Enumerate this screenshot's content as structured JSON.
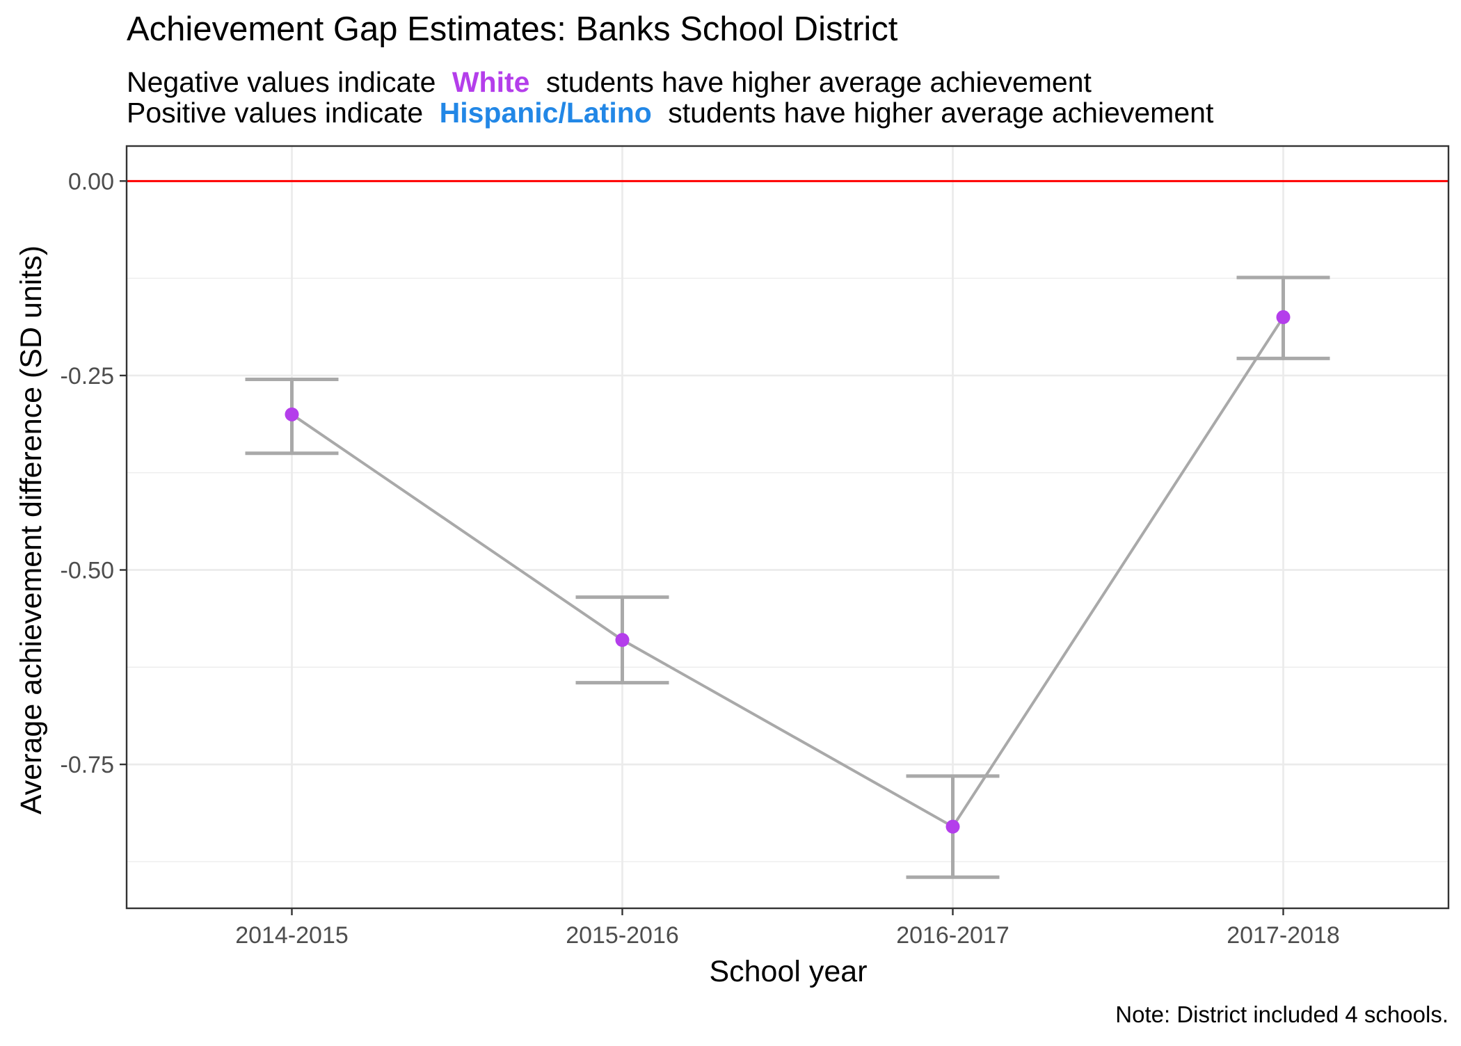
{
  "chart_data": {
    "type": "line",
    "title": "Achievement Gap Estimates: Banks School District",
    "subtitle": {
      "line1": {
        "before": "Negative values indicate",
        "highlight": "White",
        "after": "students have higher average achievement"
      },
      "line2": {
        "before": "Positive values indicate",
        "highlight": "Hispanic/Latino",
        "after": "students have higher average achievement"
      }
    },
    "xlabel": "School year",
    "ylabel": "Average achievement difference (SD units)",
    "caption": "Note: District included 4 schools.",
    "categories": [
      "2014-2015",
      "2015-2016",
      "2016-2017",
      "2017-2018"
    ],
    "values": [
      -0.3,
      -0.59,
      -0.83,
      -0.175
    ],
    "error_lower": [
      -0.35,
      -0.645,
      -0.895,
      -0.228
    ],
    "error_upper": [
      -0.255,
      -0.535,
      -0.765,
      -0.124
    ],
    "ylim": [
      -0.935,
      0.045
    ],
    "y_ticks": [
      0.0,
      -0.25,
      -0.5,
      -0.75
    ],
    "y_tick_labels": [
      "0.00",
      "-0.25",
      "-0.50",
      "-0.75"
    ],
    "reference_line": 0.0,
    "grid": true,
    "legend": "none",
    "colors": {
      "white_highlight": "#B43EEB",
      "hispanic_highlight": "#2287E6",
      "point": "#B43EEB",
      "line": "#A9A9A9",
      "errorbar": "#A9A9A9",
      "reference_line": "#FF0000",
      "grid": "#EBEBEB"
    }
  }
}
